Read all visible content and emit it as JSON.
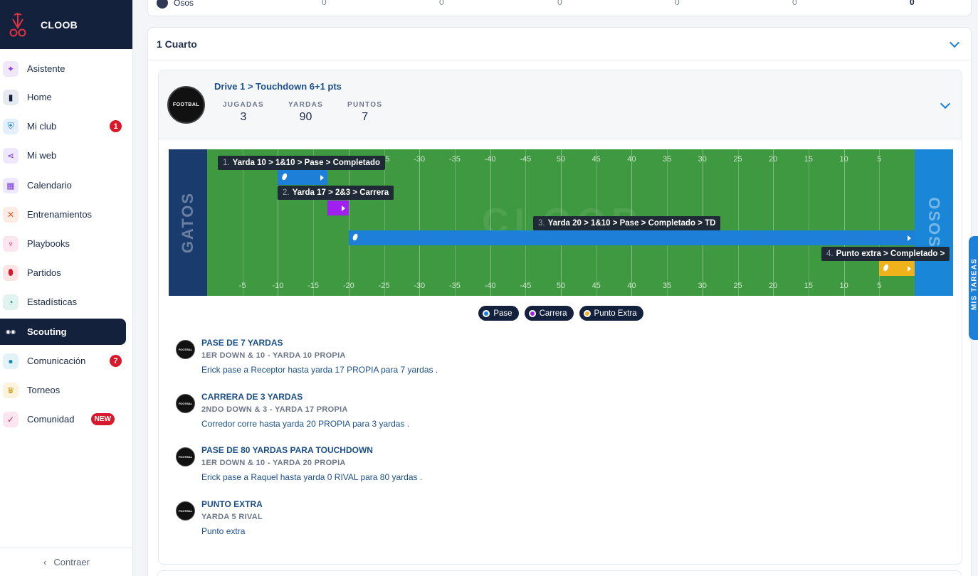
{
  "brand": {
    "name": "CLOOB"
  },
  "sidebar": {
    "items": [
      {
        "label": "Asistente",
        "icon": "sparkle-icon",
        "color": "#8b3fd9",
        "bg": "#f1e7fb"
      },
      {
        "label": "Home",
        "icon": "bookmark-icon",
        "color": "#14213d",
        "bg": "#e6e9f0"
      },
      {
        "label": "Mi club",
        "icon": "shield-icon",
        "color": "#1e7fd8",
        "bg": "#e3effb",
        "badge": "1"
      },
      {
        "label": "Mi web",
        "icon": "share-icon",
        "color": "#7a3fd9",
        "bg": "#efe7fb"
      },
      {
        "label": "Calendario",
        "icon": "calendar-icon",
        "color": "#7a3fd9",
        "bg": "#efe7fb"
      },
      {
        "label": "Entrenamientos",
        "icon": "drill-icon",
        "color": "#e0542b",
        "bg": "#fdebe4"
      },
      {
        "label": "Playbooks",
        "icon": "playbook-icon",
        "color": "#d22a64",
        "bg": "#fbe5ee"
      },
      {
        "label": "Partidos",
        "icon": "football-icon",
        "color": "#d7192b",
        "bg": "#fbe4e6"
      },
      {
        "label": "Estadísticas",
        "icon": "pie-chart-icon",
        "color": "#10806b",
        "bg": "#e1f3ef"
      },
      {
        "label": "Scouting",
        "icon": "binoculars-icon",
        "color": "#ffffff",
        "bg": "transparent",
        "active": true
      },
      {
        "label": "Comunicación",
        "icon": "chat-icon",
        "color": "#1a8bb8",
        "bg": "#e2f2f8",
        "badge": "7"
      },
      {
        "label": "Torneos",
        "icon": "trophy-icon",
        "color": "#c99a13",
        "bg": "#fbf3dd"
      },
      {
        "label": "Comunidad",
        "icon": "check-circle-icon",
        "color": "#d22a64",
        "bg": "#fbe5ee",
        "badge": "NEW"
      }
    ],
    "collapse_label": "Contraer"
  },
  "top_row": {
    "team": "Osos",
    "scores": [
      "0",
      "0",
      "0",
      "0",
      "0",
      "0"
    ]
  },
  "quarter": {
    "title": "1 Cuarto"
  },
  "drive": {
    "title": "Drive 1 > Touchdown 6+1 pts",
    "logo_text": "FOOTBAL",
    "stats": [
      {
        "label": "JUGADAS",
        "value": "3"
      },
      {
        "label": "YARDAS",
        "value": "90"
      },
      {
        "label": "PUNTOS",
        "value": "7"
      }
    ]
  },
  "field": {
    "left_team": "GATOS",
    "right_team": "OSOS",
    "watermark": "CLOOB",
    "yard_numbers": [
      "-5",
      "-10",
      "-15",
      "-20",
      "-25",
      "-30",
      "-35",
      "-40",
      "-45",
      "50",
      "45",
      "40",
      "35",
      "30",
      "25",
      "20",
      "15",
      "10",
      "5"
    ],
    "plays": [
      {
        "num": "1.",
        "label": "Yarda 10 > 1&10 > Pase > Completado",
        "type": "pass",
        "color": "#1e7fd8",
        "from": 10,
        "to": 17
      },
      {
        "num": "2.",
        "label": "Yarda 17 > 2&3 > Carrera",
        "type": "run",
        "color": "#a020f0",
        "from": 17,
        "to": 20
      },
      {
        "num": "3.",
        "label": "Yarda 20 > 1&10 > Pase > Completado > TD",
        "type": "pass",
        "color": "#1e7fd8",
        "from": 20,
        "to": 100
      },
      {
        "num": "4.",
        "label": "Punto extra > Completado >",
        "type": "extra",
        "color": "#f0b21a",
        "from": 95,
        "to": 100
      }
    ]
  },
  "legend": [
    {
      "label": "Pase",
      "color": "#1e7fd8"
    },
    {
      "label": "Carrera",
      "color": "#a020f0"
    },
    {
      "label": "Punto Extra",
      "color": "#f0b21a"
    }
  ],
  "plays_list": [
    {
      "title": "PASE DE 7 YARDAS",
      "sub": "1ER DOWN & 10 - YARDA 10 PROPIA",
      "desc": "Erick pase a Receptor hasta yarda 17 PROPIA para 7 yardas ."
    },
    {
      "title": "CARRERA DE 3 YARDAS",
      "sub": "2NDO DOWN & 3 - YARDA 17 PROPIA",
      "desc": "Corredor corre hasta yarda 20 PROPIA para 3 yardas ."
    },
    {
      "title": "PASE DE 80 YARDAS PARA TOUCHDOWN",
      "sub": "1ER DOWN & 10 - YARDA 20 PROPIA",
      "desc": "Erick pase a Raquel hasta yarda 0 RIVAL para 80 yardas ."
    },
    {
      "title": "PUNTO EXTRA",
      "sub": "YARDA 5 RIVAL",
      "desc": "Punto extra"
    }
  ],
  "side_tab": {
    "label": "MIS TAREAS"
  }
}
